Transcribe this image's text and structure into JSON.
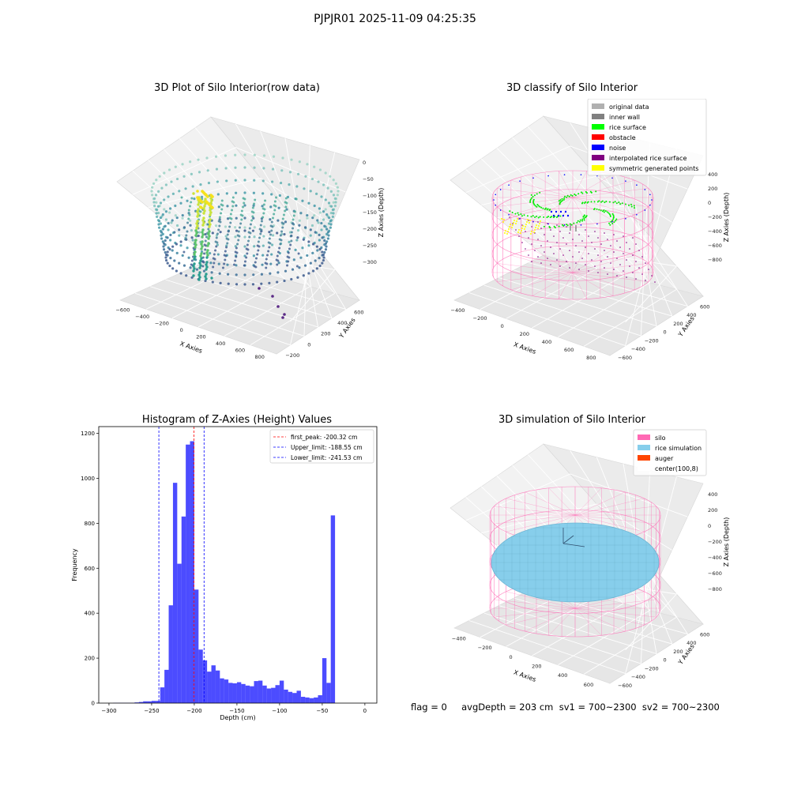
{
  "figure": {
    "suptitle": "PJPJR01 2025-11-09 04:25:35"
  },
  "panel1": {
    "title": "3D Plot of Silo Interior(row data)",
    "xlabel": "X Axies",
    "ylabel": "Y Axies",
    "zlabel": "Z Axies (Depth)",
    "xticks": [
      "−600",
      "−400",
      "−200",
      "0",
      "200",
      "400",
      "600",
      "800"
    ],
    "yticks": [
      "−200",
      "0",
      "200",
      "400",
      "600"
    ],
    "zticks": [
      "0",
      "−50",
      "−100",
      "−150",
      "−200",
      "−250",
      "−300"
    ]
  },
  "panel2": {
    "title": "3D classify of Silo Interior",
    "xlabel": "X Axies",
    "ylabel": "Y Axies",
    "zlabel": "Z Axies (Depth)",
    "xticks": [
      "−400",
      "−200",
      "0",
      "200",
      "400",
      "600",
      "800"
    ],
    "yticks": [
      "−600",
      "−400",
      "−200",
      "0",
      "200",
      "400",
      "600"
    ],
    "zticks": [
      "400",
      "200",
      "0",
      "−200",
      "−400",
      "−600",
      "−800"
    ],
    "legend": [
      {
        "label": "original data",
        "color": "#b0b0b0"
      },
      {
        "label": "inner wall",
        "color": "#808080"
      },
      {
        "label": "rice surface",
        "color": "#00ff00"
      },
      {
        "label": "obstacle",
        "color": "#ff0000"
      },
      {
        "label": "noise",
        "color": "#0000ff"
      },
      {
        "label": "interpolated rice surface",
        "color": "#800080"
      },
      {
        "label": "symmetric generated points",
        "color": "#ffff00"
      }
    ]
  },
  "panel4": {
    "title": "3D simulation of Silo Interior",
    "xlabel": "X Axies",
    "ylabel": "Y Axies",
    "zlabel": "Z Axies (Depth)",
    "xticks": [
      "−400",
      "−200",
      "0",
      "200",
      "400",
      "600"
    ],
    "yticks": [
      "−600",
      "−400",
      "−200",
      "0",
      "200",
      "400",
      "600"
    ],
    "zticks": [
      "400",
      "200",
      "0",
      "−200",
      "−400",
      "−600",
      "−800"
    ],
    "legend": [
      {
        "label": "silo",
        "color": "#ff69b4"
      },
      {
        "label": "rice simulation",
        "color": "#87ceeb"
      },
      {
        "label": "auger",
        "color": "#ff4500"
      },
      {
        "label": "center(100,8)",
        "color": "#ffffff"
      }
    ]
  },
  "footer": {
    "text": "flag = 0     avgDepth = 203 cm  sv1 = 700~2300  sv2 = 700~2300"
  },
  "chart_data": [
    {
      "type": "bar",
      "title": "Histogram of Z-Axies (Height) Values",
      "xlabel": "Depth (cm)",
      "ylabel": "Frequency",
      "xlim": [
        -312,
        14
      ],
      "ylim": [
        0,
        1230
      ],
      "xticks": [
        -300,
        -250,
        -200,
        -150,
        -100,
        -50,
        0
      ],
      "yticks": [
        0,
        200,
        400,
        600,
        800,
        1000,
        1200
      ],
      "bin_width": 5,
      "bin_starts": [
        -295,
        -290,
        -285,
        -280,
        -275,
        -270,
        -265,
        -260,
        -255,
        -250,
        -245,
        -240,
        -235,
        -230,
        -225,
        -220,
        -215,
        -210,
        -205,
        -200,
        -195,
        -190,
        -185,
        -180,
        -175,
        -170,
        -165,
        -160,
        -155,
        -150,
        -145,
        -140,
        -135,
        -130,
        -125,
        -120,
        -115,
        -110,
        -105,
        -100,
        -95,
        -90,
        -85,
        -80,
        -75,
        -70,
        -65,
        -60,
        -55,
        -50,
        -45,
        -40,
        -35,
        -30,
        -25,
        -20,
        -15,
        -10,
        -5
      ],
      "values": [
        1,
        1,
        1,
        1,
        1,
        3,
        5,
        8,
        8,
        10,
        10,
        70,
        148,
        435,
        980,
        620,
        830,
        1150,
        1165,
        505,
        238,
        190,
        140,
        168,
        145,
        110,
        105,
        90,
        88,
        93,
        85,
        78,
        75,
        98,
        100,
        78,
        65,
        68,
        80,
        100,
        60,
        50,
        45,
        55,
        28,
        25,
        22,
        25,
        35,
        200,
        90,
        835,
        0,
        0,
        0,
        0,
        0,
        0,
        0
      ],
      "color": "#0000ff",
      "lines": [
        {
          "name": "first_peak: -200.32 cm",
          "x": -200.32,
          "color": "#ff0000"
        },
        {
          "name": "Upper_limit: -188.55 cm",
          "x": -188.55,
          "color": "#0000ff"
        },
        {
          "name": "Lower_limit: -241.53 cm",
          "x": -241.53,
          "color": "#0000ff"
        }
      ],
      "legend_position": "top-right"
    }
  ]
}
